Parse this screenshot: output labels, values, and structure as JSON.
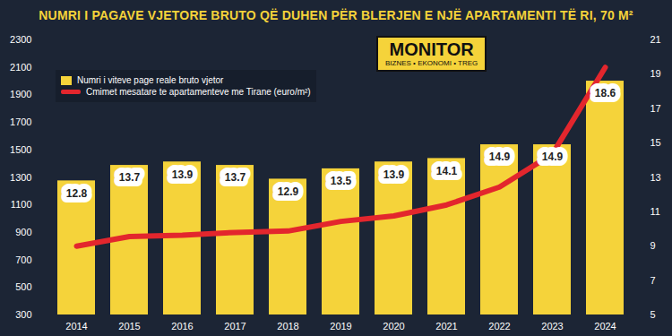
{
  "chart_data": {
    "type": "bar",
    "title": "NUMRI I PAGAVE VJETORE BRUTO QË DUHEN PËR BLERJEN E NJË APARTAMENTI TË RI, 70 M²",
    "categories": [
      "2014",
      "2015",
      "2016",
      "2017",
      "2018",
      "2019",
      "2020",
      "2021",
      "2022",
      "2023",
      "2024"
    ],
    "series": [
      {
        "name": "Numri i viteve page reale bruto vjetor",
        "type": "bar",
        "color": "#f5d33a",
        "axis": "y2",
        "data_labels": true,
        "values": [
          12.8,
          13.7,
          13.9,
          13.7,
          12.9,
          13.5,
          13.9,
          14.1,
          14.9,
          14.9,
          18.6
        ]
      },
      {
        "name": "Cmimet mesatare te apartamenteve me Tirane (euro/m²)",
        "type": "line",
        "color": "#e3262d",
        "line_style": "solid",
        "values": [
          800,
          870,
          880,
          900,
          910,
          980,
          1020,
          1100,
          1230,
          1470,
          2100
        ]
      }
    ],
    "ylim": [
      300,
      2300
    ],
    "yticks": [
      300,
      500,
      700,
      900,
      1100,
      1300,
      1500,
      1700,
      1900,
      2100,
      2300
    ],
    "y2lim": [
      5,
      21
    ],
    "y2ticks": [
      5,
      7,
      9,
      11,
      13,
      15,
      17,
      19,
      21
    ],
    "grid": false,
    "legend": "top-left",
    "annotations": [
      "MONITOR",
      "BIZNES • EKONOMI • TREG"
    ]
  }
}
